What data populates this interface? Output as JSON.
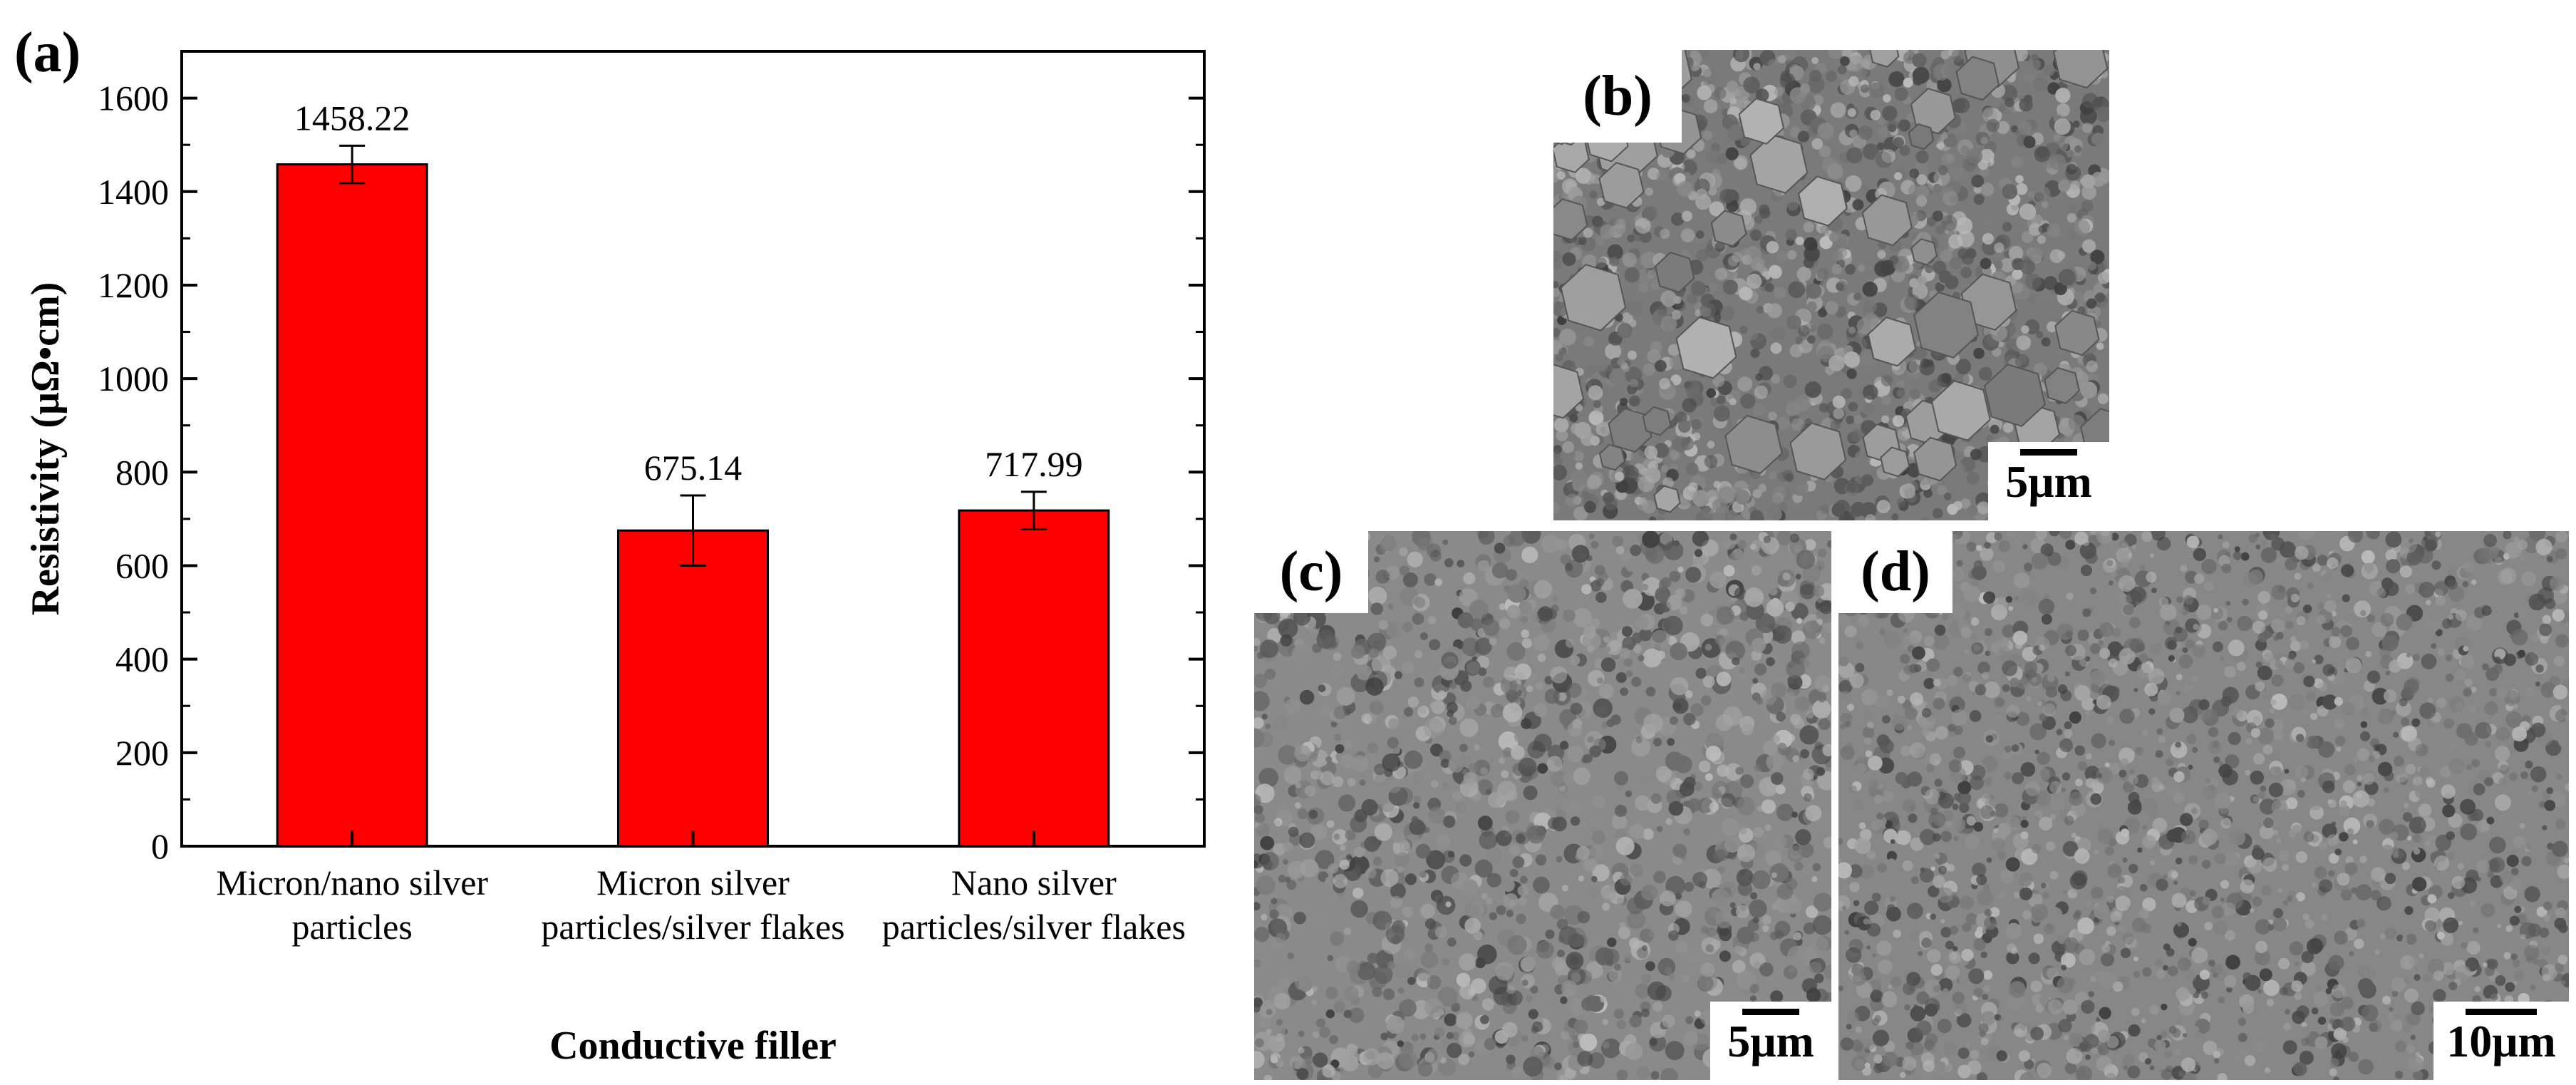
{
  "figure": {
    "panel_a_label": "(a)",
    "panel_b_label": "(b)",
    "panel_c_label": "(c)",
    "panel_d_label": "(d)"
  },
  "chart_data": {
    "type": "bar",
    "title": "",
    "xlabel": "Conductive filler",
    "ylabel": "Resistivity (μΩ•cm)",
    "ylim": [
      0,
      1700
    ],
    "yticks": [
      0,
      200,
      400,
      600,
      800,
      1000,
      1200,
      1400,
      1600
    ],
    "grid": false,
    "bar_color": "#ff0000",
    "categories": [
      [
        "Micron/nano silver",
        "particles"
      ],
      [
        "Micron silver",
        "particles/silver flakes"
      ],
      [
        "Nano silver",
        "particles/silver flakes"
      ]
    ],
    "values": [
      1458.22,
      675.14,
      717.99
    ],
    "error": [
      40,
      75,
      40
    ],
    "value_labels": [
      "1458.22",
      "675.14",
      "717.99"
    ]
  },
  "micrographs": [
    {
      "label": "(b)",
      "scale": "5μm",
      "tone": "#7a7a7a"
    },
    {
      "label": "(c)",
      "scale": "5μm",
      "tone": "#8a8a8a"
    },
    {
      "label": "(d)",
      "scale": "10μm",
      "tone": "#878787"
    }
  ]
}
